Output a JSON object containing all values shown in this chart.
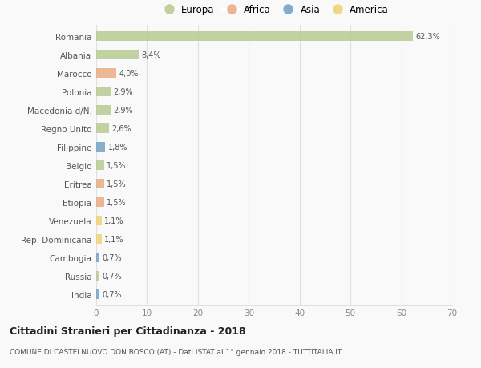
{
  "countries": [
    "Romania",
    "Albania",
    "Marocco",
    "Polonia",
    "Macedonia d/N.",
    "Regno Unito",
    "Filippine",
    "Belgio",
    "Eritrea",
    "Etiopia",
    "Venezuela",
    "Rep. Dominicana",
    "Cambogia",
    "Russia",
    "India"
  ],
  "values": [
    62.3,
    8.4,
    4.0,
    2.9,
    2.9,
    2.6,
    1.8,
    1.5,
    1.5,
    1.5,
    1.1,
    1.1,
    0.7,
    0.7,
    0.7
  ],
  "labels": [
    "62,3%",
    "8,4%",
    "4,0%",
    "2,9%",
    "2,9%",
    "2,6%",
    "1,8%",
    "1,5%",
    "1,5%",
    "1,5%",
    "1,1%",
    "1,1%",
    "0,7%",
    "0,7%",
    "0,7%"
  ],
  "colors": [
    "#b5c98e",
    "#b5c98e",
    "#e8a97e",
    "#b5c98e",
    "#b5c98e",
    "#b5c98e",
    "#6d9ec4",
    "#b5c98e",
    "#e8a97e",
    "#e8a97e",
    "#f0d070",
    "#f0d070",
    "#6d9ec4",
    "#b5c98e",
    "#6d9ec4"
  ],
  "legend": {
    "Europa": "#b5c98e",
    "Africa": "#e8a97e",
    "Asia": "#6d9ec4",
    "America": "#f0d070"
  },
  "xlim": [
    0,
    70
  ],
  "xticks": [
    0,
    10,
    20,
    30,
    40,
    50,
    60,
    70
  ],
  "title": "Cittadini Stranieri per Cittadinanza - 2018",
  "subtitle": "COMUNE DI CASTELNUOVO DON BOSCO (AT) - Dati ISTAT al 1° gennaio 2018 - TUTTITALIA.IT",
  "bg_color": "#f9f9f9",
  "grid_color": "#e0e0e0",
  "bar_height": 0.55
}
